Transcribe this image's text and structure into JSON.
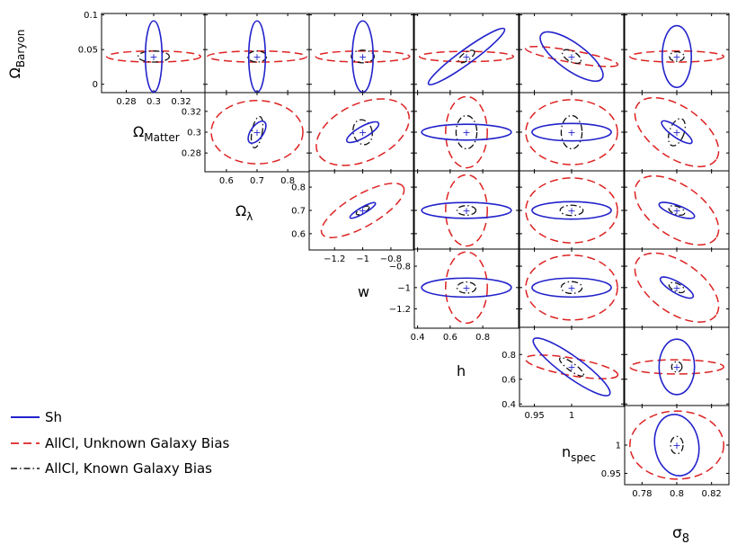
{
  "chart_data": {
    "type": "triangle-contour",
    "title": "",
    "params": [
      {
        "key": "ob",
        "sym": "Ω",
        "sub": "Baryon",
        "center": 0.04,
        "ticks": [
          {
            "v": 0,
            "t": "0"
          },
          {
            "v": 0.05,
            "t": "0.05"
          },
          {
            "v": 0.1,
            "t": "0.1"
          }
        ],
        "lim": [
          -0.012,
          0.102
        ]
      },
      {
        "key": "om",
        "sym": "Ω",
        "sub": "Matter",
        "center": 0.3,
        "ticks": [
          {
            "v": 0.28,
            "t": "0.28"
          },
          {
            "v": 0.3,
            "t": "0.3"
          },
          {
            "v": 0.32,
            "t": "0.32"
          }
        ],
        "lim": [
          0.262,
          0.338
        ]
      },
      {
        "key": "ol",
        "sym": "Ω",
        "sub": "λ",
        "center": 0.7,
        "ticks": [
          {
            "v": 0.6,
            "t": "0.6"
          },
          {
            "v": 0.7,
            "t": "0.7"
          },
          {
            "v": 0.8,
            "t": "0.8"
          }
        ],
        "lim": [
          0.53,
          0.87
        ]
      },
      {
        "key": "w",
        "sym": "w",
        "sub": "",
        "center": -1.0,
        "ticks": [
          {
            "v": -1.2,
            "t": "−1.2"
          },
          {
            "v": -1,
            "t": "−1"
          },
          {
            "v": -0.8,
            "t": "−0.8"
          }
        ],
        "lim": [
          -1.38,
          -0.64
        ]
      },
      {
        "key": "h",
        "sym": "h",
        "sub": "",
        "center": 0.7,
        "ticks": [
          {
            "v": 0.4,
            "t": "0.4"
          },
          {
            "v": 0.6,
            "t": "0.6"
          },
          {
            "v": 0.8,
            "t": "0.8"
          }
        ],
        "lim": [
          0.38,
          1.02
        ]
      },
      {
        "key": "ns",
        "sym": "n",
        "sub": "spec",
        "center": 1.0,
        "ticks": [
          {
            "v": 0.95,
            "t": "0.95"
          },
          {
            "v": 1,
            "t": "1"
          }
        ],
        "lim": [
          0.93,
          1.07
        ]
      },
      {
        "key": "s8",
        "sym": "σ",
        "sub": "8",
        "center": 0.8,
        "ticks": [
          {
            "v": 0.78,
            "t": "0.78"
          },
          {
            "v": 0.8,
            "t": "0.8"
          },
          {
            "v": 0.82,
            "t": "0.82"
          }
        ],
        "lim": [
          0.77,
          0.83
        ]
      }
    ],
    "series": [
      {
        "name": "Sh",
        "color": "#2222cc",
        "dash": "",
        "width": 1.6
      },
      {
        "name": "AllCl, Unknown Galaxy Bias",
        "color": "#dd2222",
        "dash": "9 5",
        "width": 1.5
      },
      {
        "name": "AllCl, Known Galaxy Bias",
        "color": "#111111",
        "dash": "7 3 1.5 3",
        "width": 1.3
      }
    ],
    "ellipses": [
      {
        "row": 0,
        "col": 1,
        "e": [
          [
            0.16,
            0.9,
            0
          ],
          [
            0.9,
            0.14,
            0
          ],
          [
            0.3,
            0.14,
            0
          ]
        ]
      },
      {
        "row": 0,
        "col": 2,
        "e": [
          [
            0.16,
            0.9,
            0
          ],
          [
            0.95,
            0.14,
            0
          ],
          [
            0.18,
            0.14,
            0
          ]
        ]
      },
      {
        "row": 0,
        "col": 3,
        "e": [
          [
            0.2,
            0.9,
            0
          ],
          [
            0.9,
            0.14,
            0
          ],
          [
            0.22,
            0.16,
            0
          ]
        ]
      },
      {
        "row": 0,
        "col": 4,
        "e": [
          [
            0.9,
            0.18,
            36
          ],
          [
            0.9,
            0.13,
            0
          ],
          [
            0.18,
            0.1,
            35
          ]
        ]
      },
      {
        "row": 0,
        "col": 5,
        "e": [
          [
            0.72,
            0.34,
            -36
          ],
          [
            0.9,
            0.15,
            -10
          ],
          [
            0.2,
            0.13,
            -30
          ]
        ]
      },
      {
        "row": 0,
        "col": 6,
        "e": [
          [
            0.28,
            0.78,
            0
          ],
          [
            0.9,
            0.14,
            0
          ],
          [
            0.14,
            0.12,
            0
          ]
        ]
      },
      {
        "row": 1,
        "col": 2,
        "e": [
          [
            0.12,
            0.32,
            -35
          ],
          [
            0.88,
            0.8,
            0
          ],
          [
            0.1,
            0.4,
            -10
          ]
        ]
      },
      {
        "row": 1,
        "col": 3,
        "e": [
          [
            0.35,
            0.14,
            30
          ],
          [
            0.95,
            0.72,
            25
          ],
          [
            0.18,
            0.32,
            15
          ]
        ]
      },
      {
        "row": 1,
        "col": 4,
        "e": [
          [
            0.86,
            0.2,
            0
          ],
          [
            0.4,
            0.9,
            0
          ],
          [
            0.2,
            0.42,
            0
          ]
        ]
      },
      {
        "row": 1,
        "col": 5,
        "e": [
          [
            0.76,
            0.22,
            0
          ],
          [
            0.88,
            0.82,
            0
          ],
          [
            0.2,
            0.42,
            0
          ]
        ]
      },
      {
        "row": 1,
        "col": 6,
        "e": [
          [
            0.35,
            0.13,
            -35
          ],
          [
            0.92,
            0.64,
            -35
          ],
          [
            0.14,
            0.36,
            -20
          ]
        ]
      },
      {
        "row": 2,
        "col": 3,
        "e": [
          [
            0.28,
            0.08,
            30
          ],
          [
            0.9,
            0.4,
            30
          ],
          [
            0.14,
            0.07,
            30
          ]
        ]
      },
      {
        "row": 2,
        "col": 4,
        "e": [
          [
            0.86,
            0.2,
            0
          ],
          [
            0.4,
            0.9,
            0
          ],
          [
            0.18,
            0.12,
            0
          ]
        ]
      },
      {
        "row": 2,
        "col": 5,
        "e": [
          [
            0.76,
            0.22,
            0
          ],
          [
            0.88,
            0.82,
            0
          ],
          [
            0.22,
            0.13,
            0
          ]
        ]
      },
      {
        "row": 2,
        "col": 6,
        "e": [
          [
            0.36,
            0.13,
            -20
          ],
          [
            0.92,
            0.64,
            -35
          ],
          [
            0.16,
            0.1,
            -20
          ]
        ]
      },
      {
        "row": 3,
        "col": 4,
        "e": [
          [
            0.86,
            0.24,
            0
          ],
          [
            0.4,
            0.9,
            0
          ],
          [
            0.18,
            0.14,
            0
          ]
        ]
      },
      {
        "row": 3,
        "col": 5,
        "e": [
          [
            0.76,
            0.24,
            0
          ],
          [
            0.88,
            0.82,
            0
          ],
          [
            0.2,
            0.15,
            0
          ]
        ]
      },
      {
        "row": 3,
        "col": 6,
        "e": [
          [
            0.36,
            0.14,
            -30
          ],
          [
            0.92,
            0.64,
            -35
          ],
          [
            0.16,
            0.1,
            -25
          ]
        ]
      },
      {
        "row": 4,
        "col": 5,
        "e": [
          [
            0.9,
            0.26,
            -36
          ],
          [
            0.9,
            0.22,
            -10
          ],
          [
            0.28,
            0.1,
            -36
          ]
        ]
      },
      {
        "row": 4,
        "col": 6,
        "e": [
          [
            0.34,
            0.7,
            0
          ],
          [
            0.9,
            0.18,
            0
          ],
          [
            0.1,
            0.13,
            0
          ]
        ]
      },
      {
        "row": 5,
        "col": 6,
        "e": [
          [
            0.42,
            0.78,
            10
          ],
          [
            0.9,
            0.86,
            0
          ],
          [
            0.12,
            0.22,
            0
          ]
        ]
      }
    ]
  }
}
